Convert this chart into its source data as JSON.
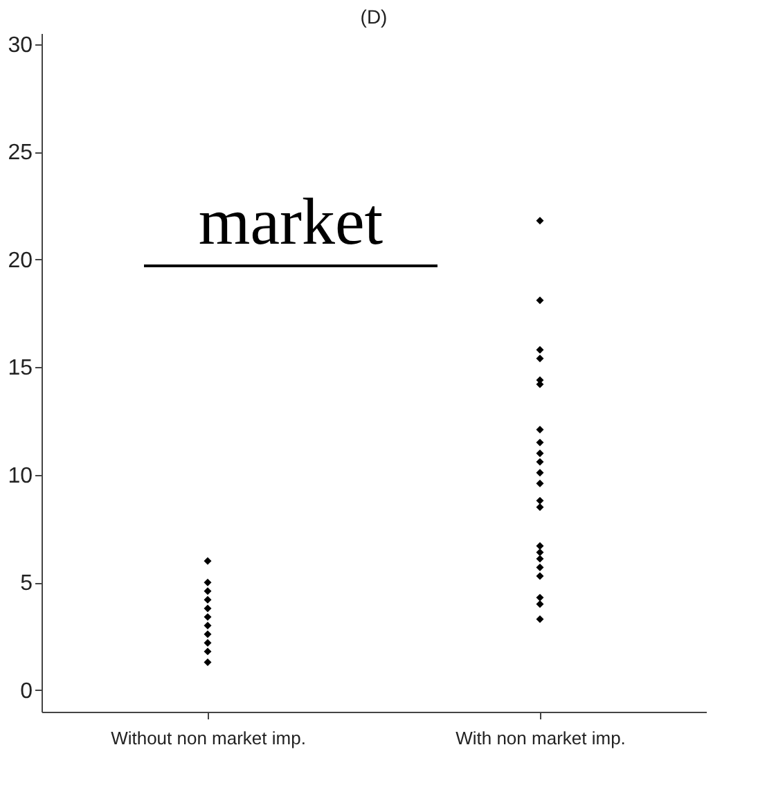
{
  "chart_data": {
    "type": "scatter",
    "title": "(D)",
    "categories": [
      "Without non market imp.",
      "With non market imp."
    ],
    "series": [
      {
        "color": "#000000",
        "x": [
          "Without non market imp.",
          "Without non market imp.",
          "Without non market imp.",
          "Without non market imp.",
          "Without non market imp.",
          "Without non market imp.",
          "Without non market imp.",
          "Without non market imp.",
          "Without non market imp.",
          "Without non market imp.",
          "Without non market imp."
        ],
        "values": [
          6.0,
          5.0,
          4.6,
          4.2,
          3.8,
          3.4,
          3.0,
          2.6,
          2.2,
          1.8,
          1.3
        ]
      },
      {
        "color": "#000000",
        "x": [
          "With non market imp.",
          "With non market imp.",
          "With non market imp.",
          "With non market imp.",
          "With non market imp.",
          "With non market imp.",
          "With non market imp.",
          "With non market imp.",
          "With non market imp.",
          "With non market imp.",
          "With non market imp.",
          "With non market imp.",
          "With non market imp.",
          "With non market imp.",
          "With non market imp.",
          "With non market imp.",
          "With non market imp.",
          "With non market imp.",
          "With non market imp.",
          "With non market imp.",
          "With non market imp.",
          "With non market imp."
        ],
        "values": [
          21.8,
          18.1,
          15.8,
          15.4,
          14.4,
          14.2,
          12.1,
          11.5,
          11.0,
          10.6,
          10.1,
          9.6,
          8.8,
          8.5,
          6.7,
          6.4,
          6.1,
          5.7,
          5.3,
          4.3,
          4.0,
          3.3
        ]
      }
    ],
    "ylim": [
      -1,
      30.5
    ],
    "yticks": [
      0,
      5,
      10,
      15,
      20,
      25,
      30
    ],
    "grid": false,
    "marker": "diamond",
    "annotations": [
      "market"
    ]
  }
}
